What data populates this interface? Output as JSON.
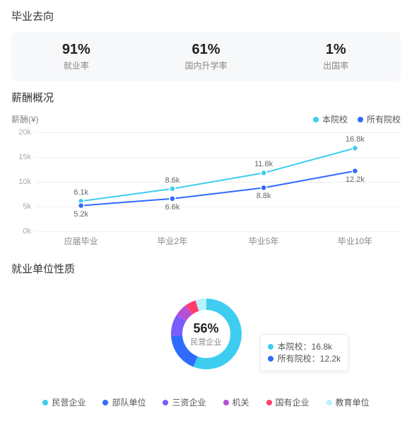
{
  "graduation": {
    "title": "毕业去向",
    "stats": [
      {
        "value": "91%",
        "label": "就业率"
      },
      {
        "value": "61%",
        "label": "国内升学率"
      },
      {
        "value": "1%",
        "label": "出国率"
      }
    ],
    "card_bg": "#f7f8fa"
  },
  "salary": {
    "title": "薪酬概况",
    "axis_title": "薪酬(¥)",
    "legend": [
      {
        "label": "本院校",
        "color": "#3ecdf0"
      },
      {
        "label": "所有院校",
        "color": "#2f6bff"
      }
    ],
    "y_ticks": [
      "0k",
      "5k",
      "10k",
      "15k",
      "20k"
    ],
    "y_max": 20,
    "categories": [
      "应届毕业",
      "毕业2年",
      "毕业5年",
      "毕业10年"
    ],
    "series": [
      {
        "name": "本院校",
        "color": "#3ecdf0",
        "values": [
          6.1,
          8.6,
          11.8,
          16.8
        ],
        "labels": [
          "6.1k",
          "8.6k",
          "11.8k",
          "16.8k"
        ],
        "label_pos": "above"
      },
      {
        "name": "所有院校",
        "color": "#2f6bff",
        "values": [
          5.2,
          6.6,
          8.8,
          12.2
        ],
        "labels": [
          "5.2k",
          "6.6k",
          "8.8k",
          "12.2k"
        ],
        "label_pos": "below"
      }
    ],
    "line_width": 2,
    "marker_radius": 4,
    "grid_color": "#f0f0f0",
    "label_fontsize": 11
  },
  "employer": {
    "title": "就业单位性质",
    "center_value": "56%",
    "center_label": "民营企业",
    "slices": [
      {
        "label": "民营企业",
        "color": "#3ecdf0",
        "pct": 56
      },
      {
        "label": "部队单位",
        "color": "#2f6bff",
        "pct": 18
      },
      {
        "label": "三资企业",
        "color": "#7a5cff",
        "pct": 10
      },
      {
        "label": "机关",
        "color": "#b44fd6",
        "pct": 6
      },
      {
        "label": "国有企业",
        "color": "#ff3e6c",
        "pct": 5
      },
      {
        "label": "教育单位",
        "color": "#b8f2ff",
        "pct": 5
      }
    ],
    "donut_outer_r": 50,
    "donut_inner_r": 34,
    "tooltip": {
      "rows": [
        {
          "color": "#3ecdf0",
          "text": "本院校：16.8k"
        },
        {
          "color": "#2f6bff",
          "text": "所有院校：12.2k"
        }
      ]
    }
  }
}
